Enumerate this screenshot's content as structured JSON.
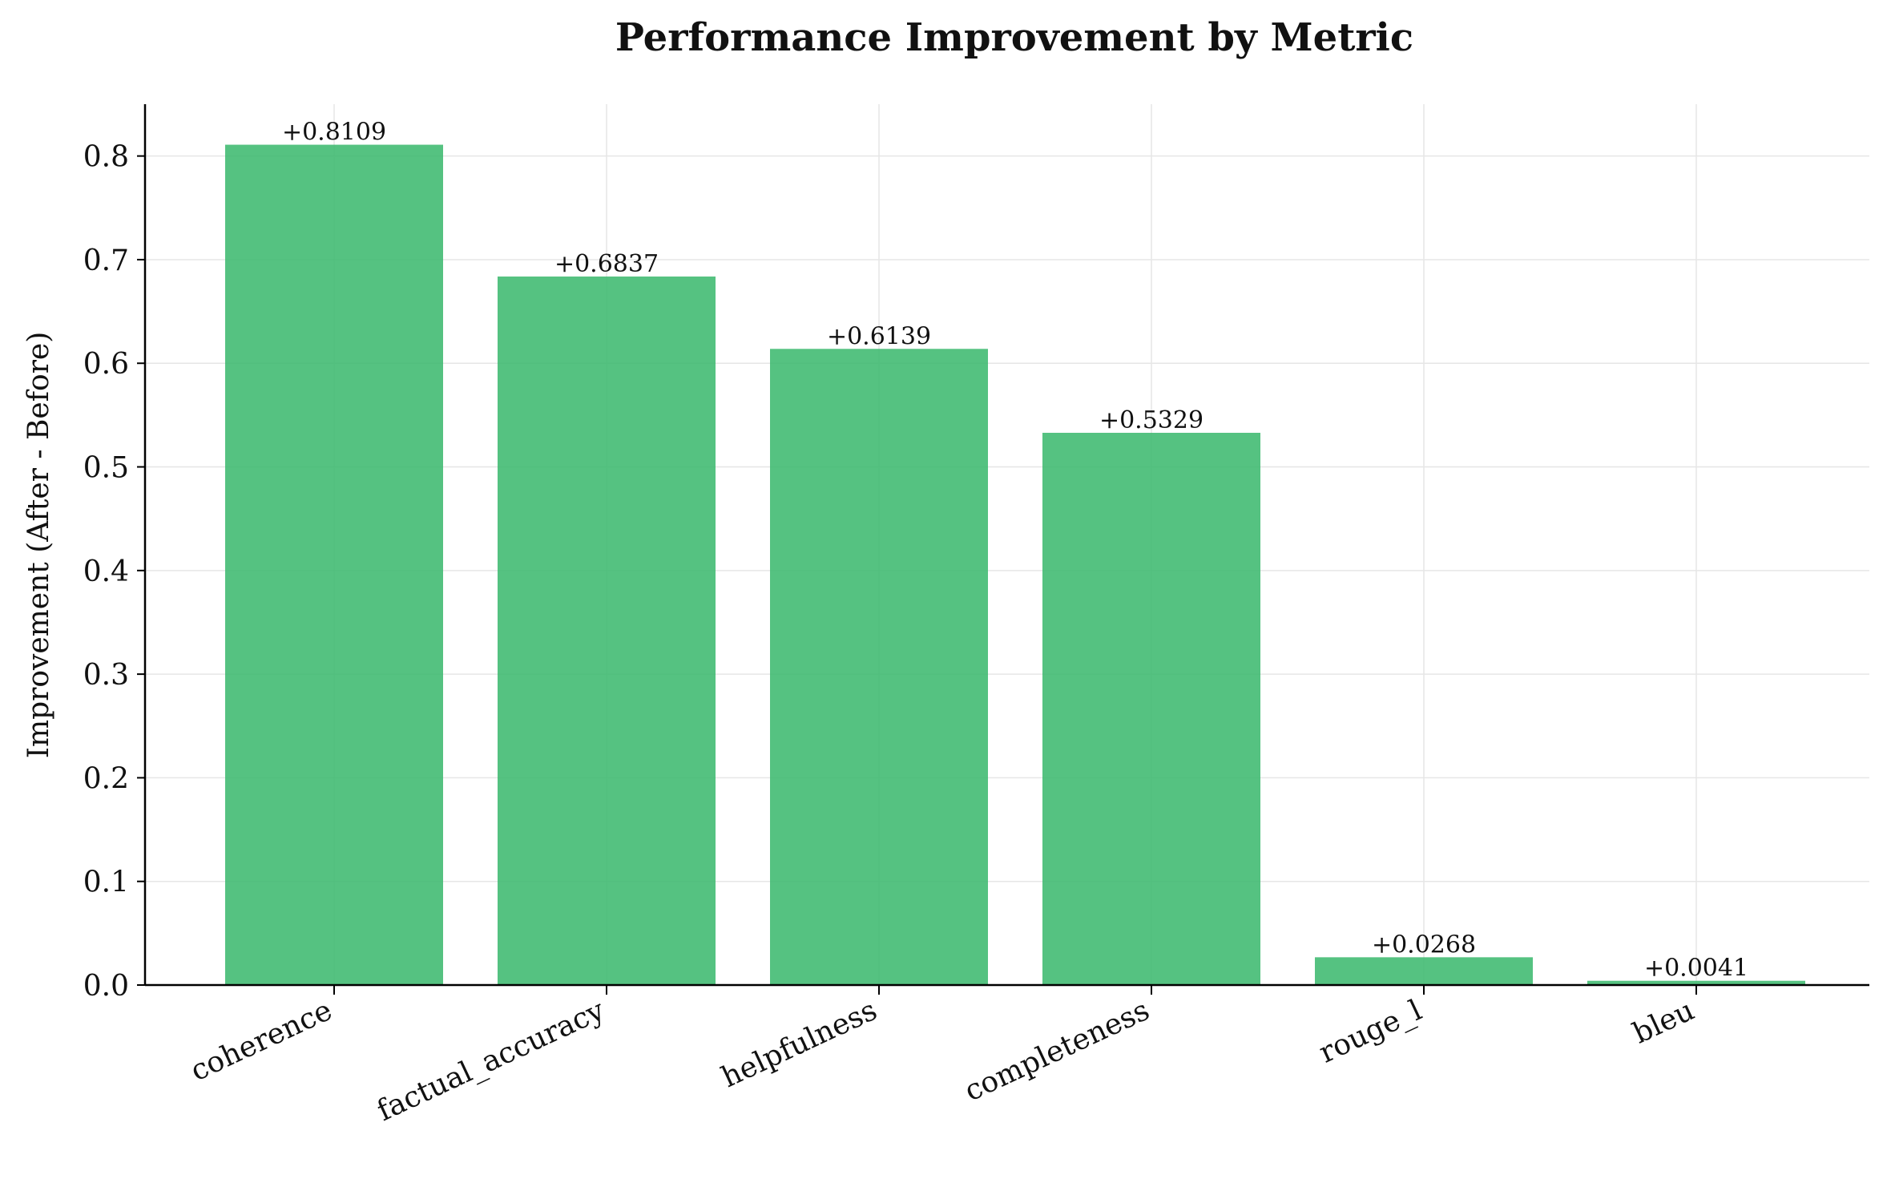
{
  "chart_data": {
    "type": "bar",
    "title": "Performance Improvement by Metric",
    "xlabel": "",
    "ylabel": "Improvement (After - Before)",
    "categories": [
      "coherence",
      "factual_accuracy",
      "helpfulness",
      "completeness",
      "rouge_l",
      "bleu"
    ],
    "values": [
      0.8109,
      0.6837,
      0.6139,
      0.5329,
      0.0268,
      0.0041
    ],
    "data_labels": [
      "+0.8109",
      "+0.6837",
      "+0.6139",
      "+0.5329",
      "+0.0268",
      "+0.0041"
    ],
    "ylim": [
      0,
      0.85
    ],
    "yticks": [
      "0.0",
      "0.1",
      "0.2",
      "0.3",
      "0.4",
      "0.5",
      "0.6",
      "0.7",
      "0.8"
    ],
    "grid": true,
    "bar_color": "#3dba6f"
  }
}
